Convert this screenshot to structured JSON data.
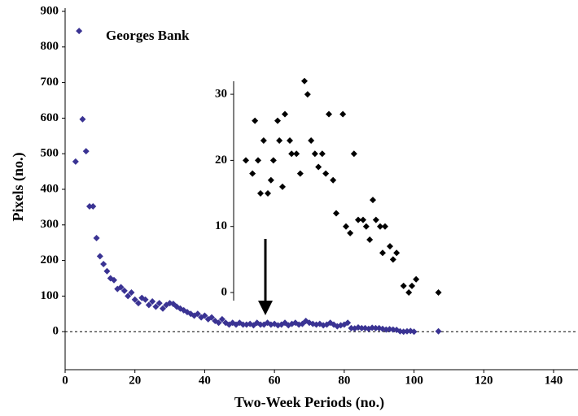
{
  "chart_data": [
    {
      "type": "scatter",
      "annotation": "Georges Bank",
      "x_label": "Two-Week Periods (no.)",
      "y_label": "Pixels (no.)",
      "color": "#3a3393",
      "xlim": [
        0,
        147
      ],
      "ylim": [
        -100,
        900
      ],
      "xticks": [
        0,
        20,
        40,
        60,
        80,
        100,
        120,
        140
      ],
      "yticks": [
        0,
        100,
        200,
        300,
        400,
        500,
        600,
        700,
        800,
        900
      ],
      "x": [
        3,
        4,
        5,
        6,
        7,
        8,
        9,
        10,
        11,
        12,
        13,
        14,
        15,
        16,
        17,
        18,
        19,
        20,
        21,
        22,
        23,
        24,
        25,
        26,
        27,
        28,
        29,
        30,
        31,
        32,
        33,
        34,
        35,
        36,
        37,
        38,
        39,
        40,
        41,
        42,
        43,
        44,
        45,
        46,
        47,
        48,
        49,
        50,
        51,
        52,
        53,
        54,
        55,
        56,
        57,
        58,
        59,
        60,
        61,
        62,
        63,
        64,
        65,
        66,
        67,
        68,
        69,
        70,
        71,
        72,
        73,
        74,
        75,
        76,
        77,
        78,
        79,
        80,
        81,
        82,
        83,
        84,
        85,
        86,
        87,
        88,
        89,
        90,
        91,
        92,
        93,
        94,
        95,
        96,
        97,
        98,
        99,
        100,
        107
      ],
      "values": [
        478,
        845,
        597,
        507,
        352,
        352,
        263,
        212,
        190,
        170,
        150,
        145,
        120,
        125,
        115,
        100,
        110,
        90,
        80,
        95,
        90,
        75,
        85,
        70,
        80,
        65,
        75,
        80,
        78,
        70,
        65,
        60,
        55,
        50,
        45,
        50,
        40,
        45,
        35,
        40,
        30,
        25,
        35,
        25,
        20,
        25,
        20,
        25,
        20,
        20,
        22,
        18,
        25,
        20,
        20,
        25,
        20,
        22,
        18,
        20,
        25,
        18,
        22,
        25,
        20,
        22,
        30,
        25,
        22,
        20,
        22,
        18,
        20,
        25,
        20,
        15,
        18,
        20,
        25,
        10,
        9,
        12,
        10,
        10,
        8,
        11,
        10,
        10,
        8,
        6,
        7,
        6,
        5,
        1,
        0,
        1,
        2,
        0,
        1
      ]
    },
    {
      "type": "scatter",
      "color": "#000000",
      "xlim": [
        0,
        147
      ],
      "ylim": [
        -1.3,
        32
      ],
      "yticks": [
        0,
        10,
        20,
        30
      ],
      "x": [
        51.8,
        53.7,
        54.4,
        55.3,
        56,
        56.9,
        58.1,
        59,
        59.7,
        60.9,
        61.4,
        62.3,
        63,
        64.4,
        64.9,
        66.3,
        67.4,
        68.6,
        69.5,
        70.5,
        71.6,
        72.6,
        73.7,
        74.7,
        75.6,
        76.8,
        77.7,
        79.6,
        80.5,
        81.7,
        82.8,
        84,
        85.4,
        86.3,
        87.3,
        88.2,
        89.1,
        90.3,
        91,
        91.7,
        93.1,
        94,
        95,
        97,
        98.5,
        99.4,
        100.6,
        107
      ],
      "values": [
        20,
        18,
        26,
        20,
        15,
        23,
        15,
        17,
        20,
        26,
        23,
        16,
        27,
        23,
        21,
        21,
        18,
        32,
        30,
        23,
        21,
        19,
        21,
        18,
        27,
        17,
        12,
        27,
        10,
        9,
        21,
        11,
        11,
        10,
        8,
        14,
        11,
        10,
        6,
        10,
        7,
        5,
        6,
        1,
        0,
        1,
        2,
        0
      ]
    }
  ]
}
